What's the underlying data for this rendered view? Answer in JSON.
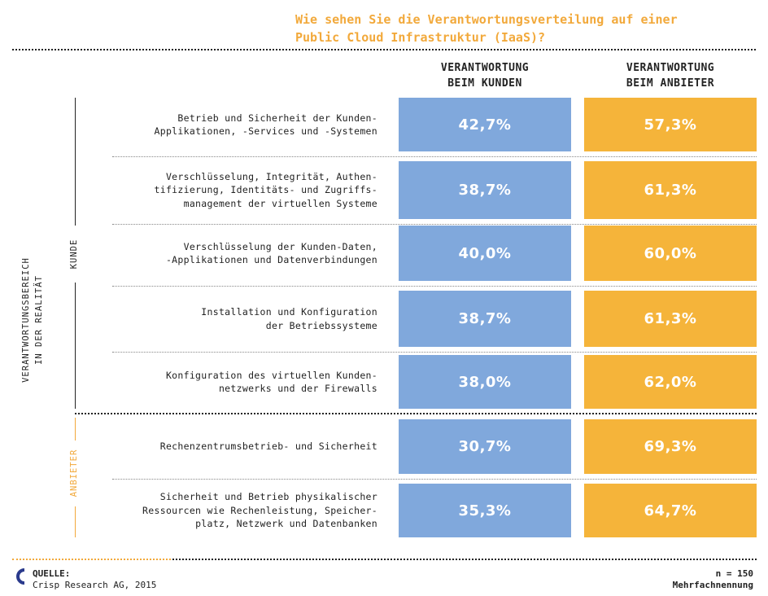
{
  "title_lines": [
    "Wie sehen Sie die Verantwortungsverteilung auf einer",
    "Public Cloud Infrastruktur (IaaS)?"
  ],
  "columns": [
    {
      "lines": [
        "VERANTWORTUNG",
        "BEIM KUNDEN"
      ]
    },
    {
      "lines": [
        "VERANTWORTUNG",
        "BEIM ANBIETER"
      ]
    }
  ],
  "axis_title_lines": [
    "VERANTWORTUNGSBEREICH",
    "IN DER REALITÄT"
  ],
  "groups": [
    {
      "label": "KUNDE",
      "color": "#222222"
    },
    {
      "label": "ANBIETER",
      "color": "#f2a93b"
    }
  ],
  "rows": [
    {
      "label_lines": [
        "Betrieb und Sicherheit der Kunden-",
        "Applikationen, -Services und -Systemen"
      ],
      "kunde": "42,7%",
      "anbieter": "57,3%"
    },
    {
      "label_lines": [
        "Verschlüsselung, Integrität, Authen-",
        "tifizierung, Identitäts- und Zugriffs-",
        "management der virtuellen Systeme"
      ],
      "kunde": "38,7%",
      "anbieter": "61,3%"
    },
    {
      "label_lines": [
        "Verschlüsselung der Kunden-Daten,",
        "-Applikationen und Datenverbindungen"
      ],
      "kunde": "40,0%",
      "anbieter": "60,0%"
    },
    {
      "label_lines": [
        "Installation und Konfiguration",
        "der Betriebssysteme"
      ],
      "kunde": "38,7%",
      "anbieter": "61,3%"
    },
    {
      "label_lines": [
        "Konfiguration des virtuellen Kunden-",
        "netzwerks und der Firewalls"
      ],
      "kunde": "38,0%",
      "anbieter": "62,0%"
    },
    {
      "label_lines": [
        "Rechenzentrumsbetrieb- und Sicherheit"
      ],
      "kunde": "30,7%",
      "anbieter": "69,3%"
    },
    {
      "label_lines": [
        "Sicherheit und Betrieb physikalischer",
        "Ressourcen wie Rechenleistung, Speicher-",
        "platz, Netzwerk und Datenbanken"
      ],
      "kunde": "35,3%",
      "anbieter": "64,7%"
    }
  ],
  "footer": {
    "source_label": "QUELLE:",
    "source_text": "Crisp Research AG, 2015",
    "n": "n = 150",
    "note": "Mehrfachnennung"
  },
  "colors": {
    "blue": "#80a8dc",
    "orange": "#f5b43a",
    "title": "#f2a93b"
  },
  "chart_data": {
    "type": "table",
    "title": "Wie sehen Sie die Verantwortungsverteilung auf einer Public Cloud Infrastruktur (IaaS)?",
    "categories": [
      "Betrieb und Sicherheit der Kunden-Applikationen, -Services und -Systemen",
      "Verschlüsselung, Integrität, Authentifizierung, Identitäts- und Zugriffsmanagement der virtuellen Systeme",
      "Verschlüsselung der Kunden-Daten, -Applikationen und Datenverbindungen",
      "Installation und Konfiguration der Betriebssysteme",
      "Konfiguration des virtuellen Kundennetzwerks und der Firewalls",
      "Rechenzentrumsbetrieb- und Sicherheit",
      "Sicherheit und Betrieb physikalischer Ressourcen wie Rechenleistung, Speicherplatz, Netzwerk und Datenbanken"
    ],
    "series": [
      {
        "name": "VERANTWORTUNG BEIM KUNDEN",
        "values": [
          42.7,
          38.7,
          40.0,
          38.7,
          38.0,
          30.7,
          35.3
        ]
      },
      {
        "name": "VERANTWORTUNG BEIM ANBIETER",
        "values": [
          57.3,
          61.3,
          60.0,
          61.3,
          62.0,
          69.3,
          64.7
        ]
      }
    ],
    "groups": [
      {
        "name": "KUNDE",
        "rows": [
          0,
          1,
          2,
          3,
          4
        ]
      },
      {
        "name": "ANBIETER",
        "rows": [
          5,
          6
        ]
      }
    ],
    "n": 150
  }
}
